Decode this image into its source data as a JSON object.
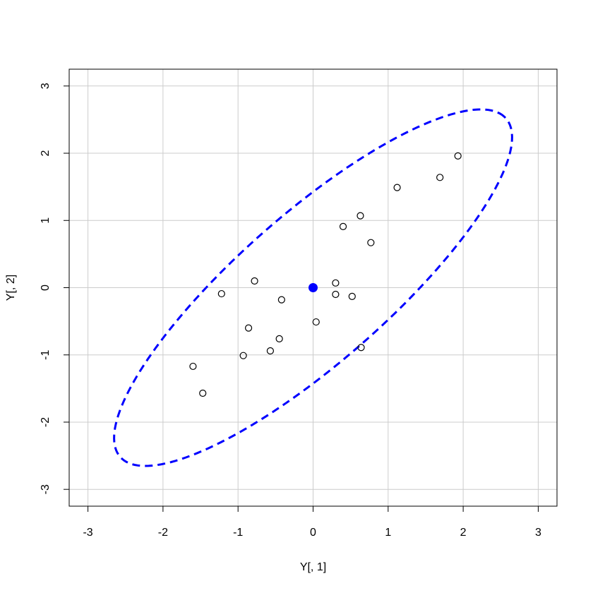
{
  "chart_data": {
    "type": "scatter",
    "title": "",
    "xlabel": "Y[, 1]",
    "ylabel": "Y[, 2]",
    "xlim": [
      -3.25,
      3.25
    ],
    "ylim": [
      -3.25,
      3.25
    ],
    "xticks": [
      -3,
      -2,
      -1,
      0,
      1,
      2,
      3
    ],
    "yticks": [
      -3,
      -2,
      -1,
      0,
      1,
      2,
      3
    ],
    "xtick_labels": [
      "-3",
      "-2",
      "-1",
      "0",
      "1",
      "2",
      "3"
    ],
    "ytick_labels": [
      "-3",
      "-2",
      "-1",
      "0",
      "1",
      "2",
      "3"
    ],
    "grid": true,
    "points": [
      {
        "x": 1.93,
        "y": 1.96
      },
      {
        "x": 1.69,
        "y": 1.64
      },
      {
        "x": 1.12,
        "y": 1.49
      },
      {
        "x": 0.63,
        "y": 1.07
      },
      {
        "x": 0.4,
        "y": 0.91
      },
      {
        "x": 0.77,
        "y": 0.67
      },
      {
        "x": -0.78,
        "y": 0.1
      },
      {
        "x": 0.3,
        "y": 0.07
      },
      {
        "x": -1.22,
        "y": -0.09
      },
      {
        "x": 0.3,
        "y": -0.1
      },
      {
        "x": 0.52,
        "y": -0.13
      },
      {
        "x": -0.42,
        "y": -0.18
      },
      {
        "x": 0.04,
        "y": -0.51
      },
      {
        "x": -0.86,
        "y": -0.6
      },
      {
        "x": -0.45,
        "y": -0.76
      },
      {
        "x": 0.64,
        "y": -0.89
      },
      {
        "x": -0.57,
        "y": -0.94
      },
      {
        "x": -0.93,
        "y": -1.01
      },
      {
        "x": -1.6,
        "y": -1.17
      },
      {
        "x": -1.47,
        "y": -1.57
      }
    ],
    "center": {
      "x": 0,
      "y": 0
    },
    "ellipse": {
      "center": {
        "x": 0,
        "y": 0
      },
      "semi_major": 3.6,
      "semi_minor": 1.05,
      "angle_deg": 45,
      "style": "dashed"
    },
    "colors": {
      "ellipse": "#0000ff",
      "center": "#0000ff",
      "points": "#000000",
      "grid": "#cccccc",
      "frame": "#000000"
    }
  }
}
